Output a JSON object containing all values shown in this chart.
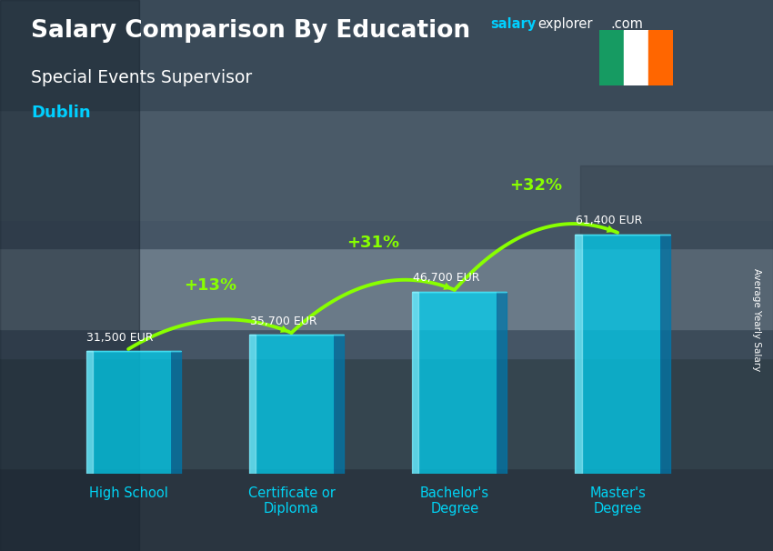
{
  "title_bold": "Salary Comparison By Education",
  "subtitle": "Special Events Supervisor",
  "city": "Dublin",
  "watermark_salary": "salary",
  "watermark_explorer": "explorer",
  "watermark_com": ".com",
  "ylabel": "Average Yearly Salary",
  "categories": [
    "High School",
    "Certificate or\nDiploma",
    "Bachelor's\nDegree",
    "Master's\nDegree"
  ],
  "values": [
    31500,
    35700,
    46700,
    61400
  ],
  "labels": [
    "31,500 EUR",
    "35,700 EUR",
    "46,700 EUR",
    "61,400 EUR"
  ],
  "pct_labels": [
    "+13%",
    "+31%",
    "+32%"
  ],
  "bar_color": "#00d4f5",
  "bar_alpha": 0.72,
  "bg_dark": "#3a4a55",
  "title_color": "#ffffff",
  "subtitle_color": "#ffffff",
  "city_color": "#00cfff",
  "label_color": "#ffffff",
  "pct_color": "#88ff00",
  "arrow_color": "#88ff00",
  "xlim": [
    -0.55,
    3.55
  ],
  "ylim": [
    0,
    82000
  ],
  "bar_width": 0.52,
  "flag_colors": [
    "#169b62",
    "#ffffff",
    "#ff6600"
  ],
  "watermark_color_salary": "#00cfff",
  "watermark_color_explorer": "#ffffff",
  "watermark_color_com": "#ffffff"
}
